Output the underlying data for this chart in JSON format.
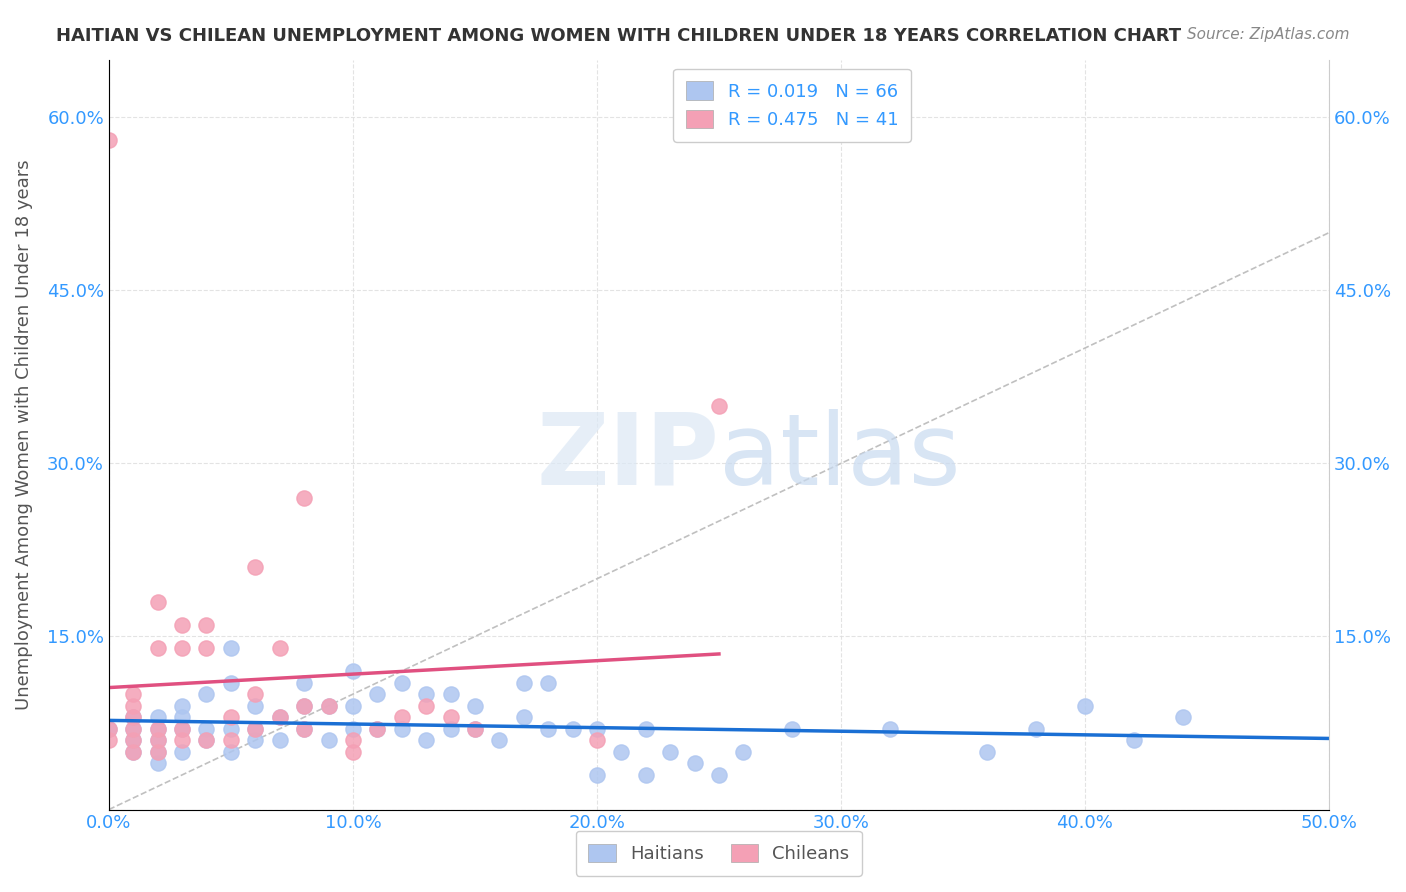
{
  "title": "HAITIAN VS CHILEAN UNEMPLOYMENT AMONG WOMEN WITH CHILDREN UNDER 18 YEARS CORRELATION CHART",
  "source": "Source: ZipAtlas.com",
  "xlabel_bottom": "",
  "ylabel": "Unemployment Among Women with Children Under 18 years",
  "xlim": [
    0.0,
    0.5
  ],
  "ylim": [
    0.0,
    0.65
  ],
  "xticks": [
    0.0,
    0.1,
    0.2,
    0.3,
    0.4,
    0.5
  ],
  "yticks": [
    0.0,
    0.15,
    0.3,
    0.45,
    0.6
  ],
  "xtick_labels": [
    "0.0%",
    "10.0%",
    "20.0%",
    "30.0%",
    "40.0%",
    "50.0%"
  ],
  "ytick_labels": [
    "",
    "15.0%",
    "30.0%",
    "45.0%",
    "60.0%"
  ],
  "legend_labels": [
    "Haitians",
    "Chileans"
  ],
  "R_haitians": "0.019",
  "N_haitians": "66",
  "R_chileans": "0.475",
  "N_chileans": "41",
  "haitian_color": "#aec6f0",
  "chilean_color": "#f4a0b5",
  "haitian_line_color": "#1a6fd4",
  "chilean_line_color": "#e05080",
  "ref_line_color": "#c0c0c0",
  "watermark": "ZIPatlas",
  "background_color": "#ffffff",
  "haitian_x": [
    0.0,
    0.01,
    0.01,
    0.01,
    0.01,
    0.02,
    0.02,
    0.02,
    0.02,
    0.02,
    0.03,
    0.03,
    0.03,
    0.03,
    0.04,
    0.04,
    0.04,
    0.05,
    0.05,
    0.05,
    0.05,
    0.06,
    0.06,
    0.06,
    0.07,
    0.07,
    0.08,
    0.08,
    0.08,
    0.09,
    0.09,
    0.1,
    0.1,
    0.1,
    0.11,
    0.11,
    0.12,
    0.12,
    0.13,
    0.13,
    0.14,
    0.14,
    0.15,
    0.15,
    0.16,
    0.17,
    0.17,
    0.18,
    0.18,
    0.19,
    0.2,
    0.2,
    0.21,
    0.22,
    0.22,
    0.23,
    0.24,
    0.25,
    0.26,
    0.28,
    0.32,
    0.36,
    0.38,
    0.4,
    0.42,
    0.44
  ],
  "haitian_y": [
    0.07,
    0.05,
    0.06,
    0.07,
    0.08,
    0.04,
    0.05,
    0.06,
    0.07,
    0.08,
    0.05,
    0.07,
    0.08,
    0.09,
    0.06,
    0.07,
    0.1,
    0.05,
    0.07,
    0.11,
    0.14,
    0.06,
    0.07,
    0.09,
    0.06,
    0.08,
    0.07,
    0.09,
    0.11,
    0.06,
    0.09,
    0.07,
    0.09,
    0.12,
    0.07,
    0.1,
    0.07,
    0.11,
    0.06,
    0.1,
    0.07,
    0.1,
    0.07,
    0.09,
    0.06,
    0.08,
    0.11,
    0.07,
    0.11,
    0.07,
    0.03,
    0.07,
    0.05,
    0.03,
    0.07,
    0.05,
    0.04,
    0.03,
    0.05,
    0.07,
    0.07,
    0.05,
    0.07,
    0.09,
    0.06,
    0.08
  ],
  "chilean_x": [
    0.0,
    0.0,
    0.0,
    0.01,
    0.01,
    0.01,
    0.01,
    0.01,
    0.01,
    0.02,
    0.02,
    0.02,
    0.02,
    0.02,
    0.03,
    0.03,
    0.03,
    0.03,
    0.04,
    0.04,
    0.04,
    0.05,
    0.05,
    0.06,
    0.06,
    0.06,
    0.07,
    0.07,
    0.08,
    0.08,
    0.08,
    0.09,
    0.1,
    0.1,
    0.11,
    0.12,
    0.13,
    0.14,
    0.15,
    0.2,
    0.25
  ],
  "chilean_y": [
    0.06,
    0.07,
    0.58,
    0.05,
    0.06,
    0.07,
    0.08,
    0.09,
    0.1,
    0.05,
    0.06,
    0.07,
    0.14,
    0.18,
    0.06,
    0.07,
    0.14,
    0.16,
    0.06,
    0.14,
    0.16,
    0.06,
    0.08,
    0.07,
    0.1,
    0.21,
    0.08,
    0.14,
    0.07,
    0.09,
    0.27,
    0.09,
    0.05,
    0.06,
    0.07,
    0.08,
    0.09,
    0.08,
    0.07,
    0.06,
    0.35
  ]
}
